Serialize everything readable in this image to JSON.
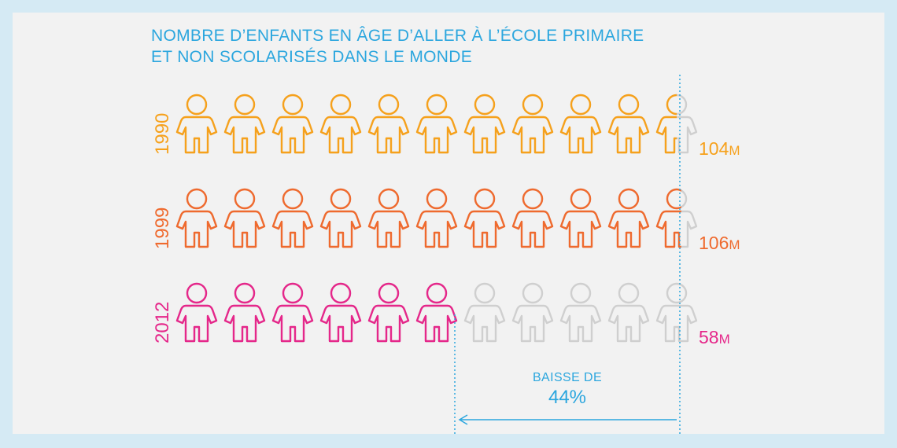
{
  "title": {
    "line1": "NOMBRE D’ENFANTS EN ÂGE D’ALLER À L’ÉCOLE PRIMAIRE",
    "line2": "ET NON SCOLARISÉS DANS LE MONDE"
  },
  "colors": {
    "background": "#d5eaf4",
    "panel": "#f2f2f2",
    "accent": "#2ba6de",
    "empty": "#cfcfcf"
  },
  "chart_data": {
    "type": "pictograph",
    "icons_per_row": 11,
    "rows": [
      {
        "year": "1990",
        "value": "104",
        "unit": "M",
        "filled_icons": 10.5,
        "color": "#f6a11c"
      },
      {
        "year": "1999",
        "value": "106",
        "unit": "M",
        "filled_icons": 10.6,
        "color": "#ef6a2e"
      },
      {
        "year": "2012",
        "value": "58",
        "unit": "M",
        "filled_icons": 6.0,
        "color": "#e5278a"
      }
    ],
    "annotation": {
      "label": "BAISSE DE",
      "value": "44%"
    }
  }
}
